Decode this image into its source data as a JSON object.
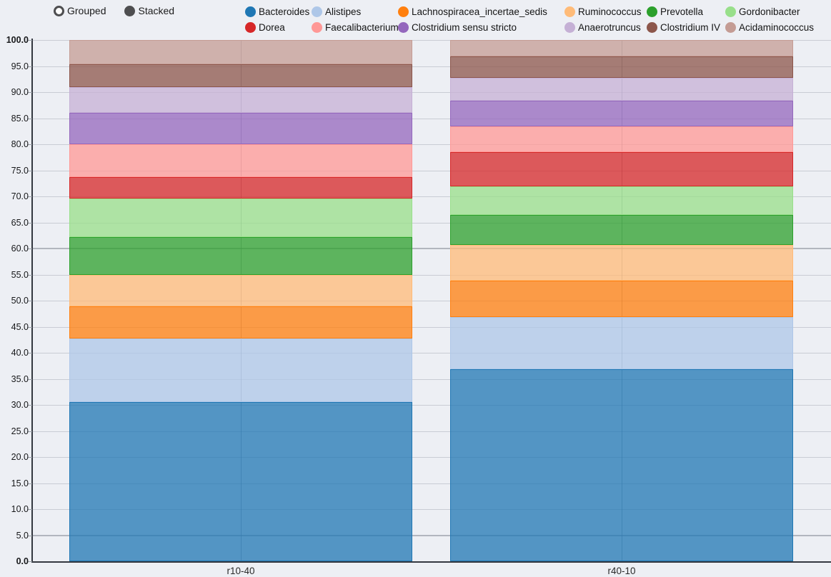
{
  "mode_toggle": {
    "options": [
      {
        "label": "Grouped",
        "selected": false
      },
      {
        "label": "Stacked",
        "selected": true
      }
    ]
  },
  "chart_data": {
    "type": "bar",
    "stacked": true,
    "title": "",
    "xlabel": "",
    "ylabel": "",
    "categories": [
      "r10-40",
      "r40-10"
    ],
    "series": [
      {
        "name": "Bacteroides",
        "color": "#1f77b4",
        "values": [
          30.6,
          36.8
        ]
      },
      {
        "name": "Alistipes",
        "color": "#aec7e8",
        "values": [
          12.1,
          10.1
        ]
      },
      {
        "name": "Lachnospiracea_incertae_sedis",
        "color": "#ff7f0e",
        "values": [
          6.2,
          6.9
        ]
      },
      {
        "name": "Ruminococcus",
        "color": "#ffbb78",
        "values": [
          6.0,
          6.9
        ]
      },
      {
        "name": "Prevotella",
        "color": "#2ca02c",
        "values": [
          7.3,
          5.8
        ]
      },
      {
        "name": "Gordonibacter",
        "color": "#98df8a",
        "values": [
          7.4,
          5.4
        ]
      },
      {
        "name": "Dorea",
        "color": "#d62728",
        "values": [
          4.1,
          6.6
        ]
      },
      {
        "name": "Faecalibacterium",
        "color": "#ff9896",
        "values": [
          6.3,
          4.9
        ]
      },
      {
        "name": "Clostridium sensu stricto",
        "color": "#9467bd",
        "values": [
          6.0,
          4.9
        ]
      },
      {
        "name": "Anaerotruncus",
        "color": "#c5b0d5",
        "values": [
          4.9,
          4.5
        ]
      },
      {
        "name": "Clostridium IV",
        "color": "#8c564b",
        "values": [
          4.5,
          4.1
        ]
      },
      {
        "name": "Acidaminococcus",
        "color": "#c49c94",
        "values": [
          4.6,
          3.1
        ]
      }
    ],
    "ylim": [
      0,
      100
    ],
    "ytick_step": 5,
    "ytick_labels": [
      "0.0",
      "5.0",
      "10.0",
      "15.0",
      "20.0",
      "25.0",
      "30.0",
      "35.0",
      "40.0",
      "45.0",
      "50.0",
      "55.0",
      "60.0",
      "65.0",
      "70.0",
      "75.0",
      "80.0",
      "85.0",
      "90.0",
      "95.0",
      "100.0"
    ],
    "emphasized_gridlines": [
      5.0,
      60.0
    ],
    "grid": true,
    "legend_position": "top"
  }
}
